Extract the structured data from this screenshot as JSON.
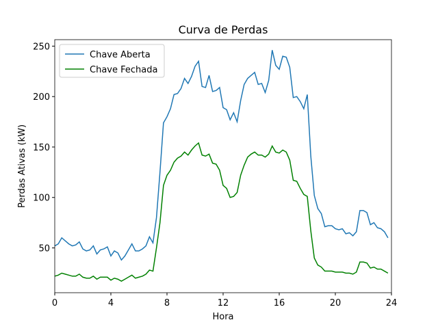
{
  "chart_data": {
    "type": "line",
    "title": "Curva de Perdas",
    "x_label": "Hora",
    "y_label": "Perdas Ativas (kW)",
    "x": [
      0,
      0.25,
      0.5,
      0.75,
      1,
      1.25,
      1.5,
      1.75,
      2,
      2.25,
      2.5,
      2.75,
      3,
      3.25,
      3.5,
      3.75,
      4,
      4.25,
      4.5,
      4.75,
      5,
      5.25,
      5.5,
      5.75,
      6,
      6.25,
      6.5,
      6.75,
      7,
      7.25,
      7.5,
      7.75,
      8,
      8.25,
      8.5,
      8.75,
      9,
      9.25,
      9.5,
      9.75,
      10,
      10.25,
      10.5,
      10.75,
      11,
      11.25,
      11.5,
      11.75,
      12,
      12.25,
      12.5,
      12.75,
      13,
      13.25,
      13.5,
      13.75,
      14,
      14.25,
      14.5,
      14.75,
      15,
      15.25,
      15.5,
      15.75,
      16,
      16.25,
      16.5,
      16.75,
      17,
      17.25,
      17.5,
      17.75,
      18,
      18.25,
      18.5,
      18.75,
      19,
      19.25,
      19.5,
      19.75,
      20,
      20.25,
      20.5,
      20.75,
      21,
      21.25,
      21.5,
      21.75,
      22,
      22.25,
      22.5,
      22.75,
      23,
      23.25,
      23.5,
      23.75
    ],
    "series": [
      {
        "name": "Chave Aberta",
        "color": "#1f77b4",
        "values": [
          52,
          54,
          60,
          57,
          54,
          52,
          53,
          56,
          49,
          47,
          48,
          52,
          44,
          48,
          49,
          51,
          42,
          47,
          45,
          38,
          42,
          48,
          54,
          47,
          47,
          49,
          52,
          61,
          55,
          80,
          125,
          174,
          180,
          188,
          202,
          203,
          208,
          218,
          213,
          220,
          230,
          235,
          210,
          209,
          221,
          205,
          206,
          209,
          189,
          187,
          177,
          184,
          175,
          196,
          212,
          218,
          221,
          224,
          212,
          213,
          204,
          216,
          246,
          231,
          227,
          240,
          239,
          229,
          199,
          200,
          195,
          188,
          202,
          141,
          102,
          89,
          84,
          71,
          72,
          72,
          69,
          68,
          69,
          64,
          65,
          62,
          66,
          87,
          87,
          85,
          73,
          75,
          70,
          69,
          66,
          60
        ]
      },
      {
        "name": "Chave Fechada",
        "color": "#008000",
        "values": [
          22,
          23,
          25,
          24,
          23,
          22,
          22,
          24,
          21,
          20,
          20,
          22,
          19,
          21,
          21,
          21,
          18,
          20,
          19,
          17,
          19,
          21,
          23,
          20,
          21,
          22,
          24,
          28,
          27,
          50,
          75,
          112,
          122,
          127,
          135,
          139,
          141,
          145,
          142,
          147,
          151,
          154,
          142,
          141,
          143,
          134,
          133,
          127,
          112,
          109,
          100,
          101,
          105,
          122,
          132,
          140,
          143,
          145,
          142,
          142,
          140,
          143,
          151,
          145,
          144,
          147,
          145,
          137,
          117,
          116,
          109,
          103,
          101,
          67,
          40,
          33,
          31,
          27,
          27,
          27,
          26,
          26,
          26,
          25,
          25,
          24,
          26,
          36,
          36,
          35,
          30,
          31,
          29,
          29,
          27,
          25
        ]
      }
    ],
    "xlim": [
      0,
      24
    ],
    "xticks": [
      0,
      4,
      8,
      12,
      16,
      20,
      24
    ],
    "ylim": [
      5.6,
      256.4
    ],
    "yticks": [
      50,
      100,
      150,
      200,
      250
    ],
    "legend": "upper left"
  }
}
